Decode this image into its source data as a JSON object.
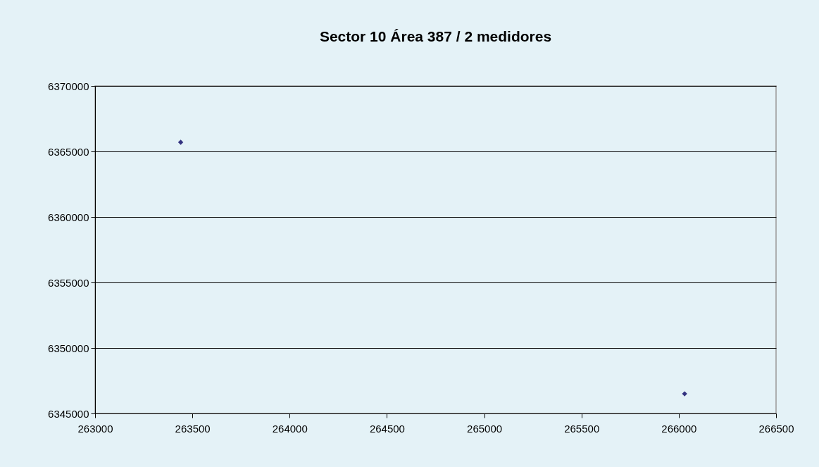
{
  "chart_data": {
    "type": "scatter",
    "title": "Sector 10 Área 387 /  2 medidores",
    "x": [
      263440,
      266030
    ],
    "series": [
      {
        "color": "#333380",
        "values": [
          6365700,
          6346500
        ]
      }
    ],
    "xlim": [
      263000,
      266500
    ],
    "xticks": [
      263000,
      263500,
      264000,
      264500,
      265000,
      265500,
      266000,
      266500
    ],
    "ylim": [
      6345000,
      6370000
    ],
    "yticks": [
      6345000,
      6350000,
      6355000,
      6360000,
      6365000,
      6370000
    ],
    "grid": "y",
    "marker": "diamond",
    "legend": false
  }
}
